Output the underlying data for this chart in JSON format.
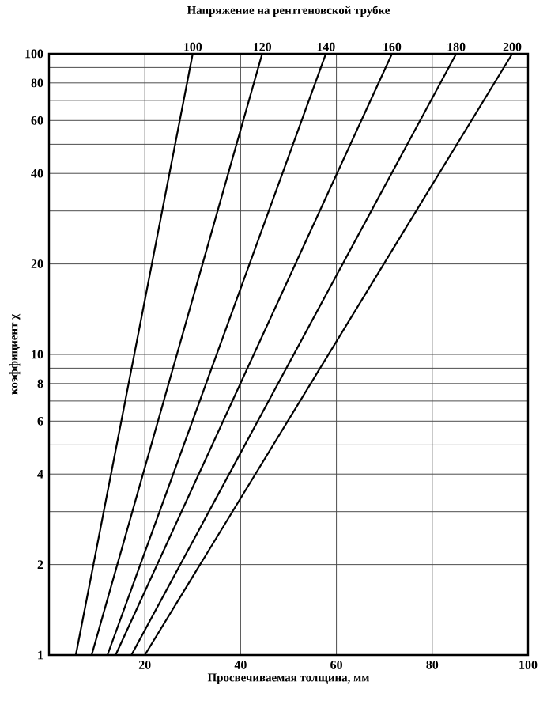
{
  "chart_data": {
    "type": "line",
    "title": "Напряжение на рентгеновской трубке",
    "xlabel": "Просвечиваемая толщина, мм",
    "ylabel": "коэффициент χ",
    "xlim": [
      0,
      100
    ],
    "xticks": [
      20,
      40,
      60,
      80,
      100
    ],
    "ylim": [
      1,
      100
    ],
    "yticks": [
      1,
      2,
      {
        "value": 3,
        "label": null
      },
      4,
      {
        "value": 5,
        "label": null
      },
      6,
      {
        "value": 7,
        "label": null
      },
      8,
      {
        "value": 9,
        "label": null
      },
      10,
      20,
      {
        "value": 30,
        "label": null
      },
      40,
      {
        "value": 50,
        "label": null
      },
      60,
      {
        "value": 70,
        "label": null
      },
      80,
      {
        "value": 90,
        "label": null
      },
      100
    ],
    "log": "y",
    "grid": true,
    "marker": "none",
    "line_style": "solid",
    "series": [
      {
        "name": "100",
        "color": "#000000",
        "x": [
          5.6,
          30
        ],
        "values": [
          1,
          100
        ]
      },
      {
        "name": "120",
        "color": "#000000",
        "x": [
          8.9,
          44.5
        ],
        "values": [
          1,
          100
        ]
      },
      {
        "name": "140",
        "color": "#000000",
        "x": [
          12.2,
          57.8
        ],
        "values": [
          1,
          100
        ]
      },
      {
        "name": "160",
        "color": "#000000",
        "x": [
          13.9,
          71.6
        ],
        "values": [
          1,
          100
        ]
      },
      {
        "name": "180",
        "color": "#000000",
        "x": [
          17.2,
          85
        ],
        "values": [
          1,
          100
        ]
      },
      {
        "name": "200",
        "color": "#000000",
        "x": [
          20,
          96.7
        ],
        "values": [
          1,
          100
        ]
      }
    ]
  }
}
